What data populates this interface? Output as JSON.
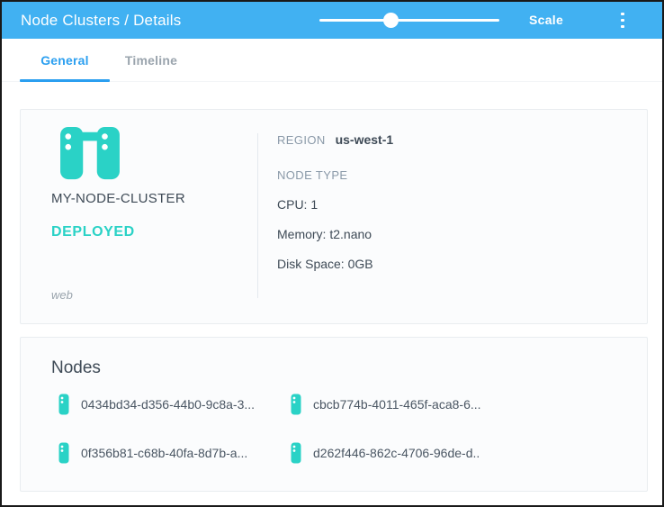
{
  "header": {
    "title": "Node Clusters / Details",
    "scale_label": "Scale",
    "slider_value_pct": 40,
    "menu_icon": "kebab-vertical-icon"
  },
  "tabs": {
    "items": [
      {
        "label": "General",
        "active": true
      },
      {
        "label": "Timeline",
        "active": false
      }
    ]
  },
  "cluster": {
    "icon": "server-cluster-icon",
    "name": "MY-NODE-CLUSTER",
    "status": "DEPLOYED",
    "type": "web",
    "region_label": "REGION",
    "region_value": "us-west-1",
    "node_type_label": "NODE TYPE",
    "cpu": "CPU: 1",
    "memory": "Memory: t2.nano",
    "disk": "Disk Space: 0GB"
  },
  "nodes": {
    "title": "Nodes",
    "icon": "server-node-icon",
    "items": [
      {
        "id": "0434bd34-d356-44b0-9c8a-3..."
      },
      {
        "id": "cbcb774b-4011-465f-aca8-6..."
      },
      {
        "id": "0f356b81-c68b-40fa-8d7b-a..."
      },
      {
        "id": "d262f446-862c-4706-96de-d.."
      }
    ]
  },
  "colors": {
    "accent_blue": "#41b1f2",
    "active_tab_blue": "#2b9ff0",
    "teal": "#2ad2c6",
    "dark_text": "#3e4a56",
    "muted_text": "#8a99a8"
  }
}
